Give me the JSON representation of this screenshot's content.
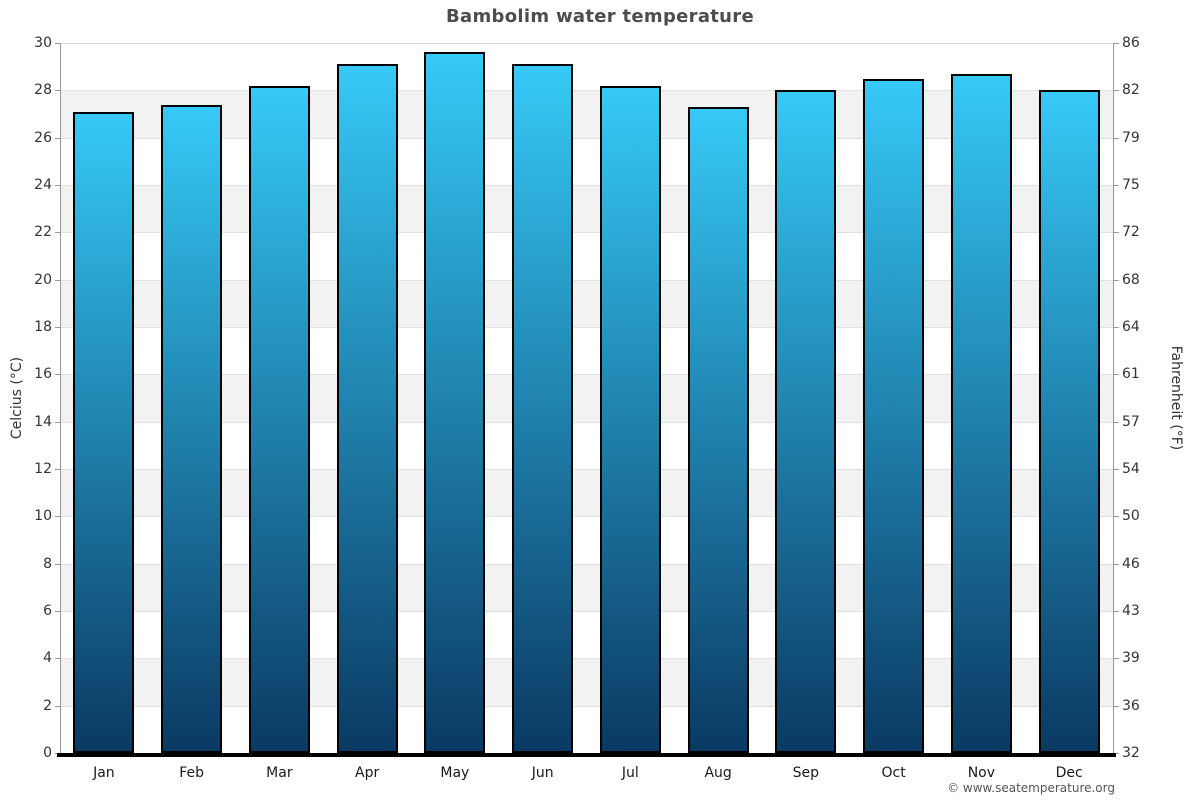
{
  "chart_data": {
    "type": "bar",
    "title": "Bambolim water temperature",
    "categories": [
      "Jan",
      "Feb",
      "Mar",
      "Apr",
      "May",
      "Jun",
      "Jul",
      "Aug",
      "Sep",
      "Oct",
      "Nov",
      "Dec"
    ],
    "values": [
      27.1,
      27.4,
      28.2,
      29.1,
      29.6,
      29.1,
      28.2,
      27.3,
      28.0,
      28.5,
      28.7,
      28.0
    ],
    "ylabel_left": "Celcius (°C)",
    "ylabel_right": "Fahrenheit (°F)",
    "ylim": [
      0,
      30
    ],
    "yticks_celsius": [
      30,
      28,
      26,
      24,
      22,
      20,
      18,
      16,
      14,
      12,
      10,
      8,
      6,
      4,
      2,
      0
    ],
    "yticks_fahrenheit": [
      86,
      82,
      79,
      75,
      72,
      68,
      64,
      61,
      57,
      54,
      50,
      46,
      43,
      39,
      36,
      32
    ],
    "grid": "horizontal-bands-alternating",
    "legend": "none"
  },
  "footer": {
    "copyright": "© www.seatemperature.org"
  },
  "colors": {
    "bar_top": "#36c9f7",
    "bar_bottom": "#0a3a63",
    "bar_border": "#000000",
    "band_gray": "#f2f2f2",
    "gridline": "#e0e0e0",
    "axis_line": "#999999",
    "baseline": "#000000",
    "title_text": "#4d4d4d",
    "tick_text": "#333333",
    "footer_text": "#555555"
  }
}
